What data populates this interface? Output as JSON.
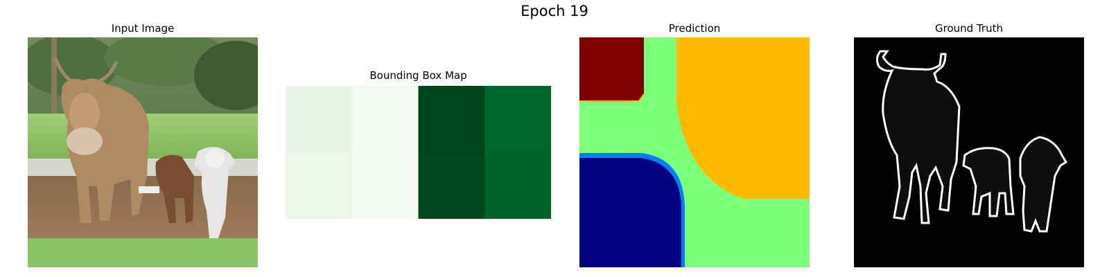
{
  "figure": {
    "suptitle": "Epoch 19"
  },
  "panels": {
    "input": {
      "title": "Input Image"
    },
    "bbox": {
      "title": "Bounding Box Map",
      "grid_rows": 2,
      "grid_cols": 4,
      "cell_colors": [
        [
          "#e8f5e6",
          "#f3faf1",
          "#00441b",
          "#00672a"
        ],
        [
          "#ecf7e9",
          "#f5fbf3",
          "#00471d",
          "#006428"
        ]
      ]
    },
    "prediction": {
      "title": "Prediction",
      "colors": {
        "background": "#7dff7a",
        "region_top_left": "#800000",
        "region_top_right": "#ffb900",
        "region_bottom_left": "#000080",
        "edge": "#0080ff"
      }
    },
    "ground_truth": {
      "title": "Ground Truth",
      "colors": {
        "background": "#000000",
        "fill": "#0e0e0e",
        "outline": "#ffffff"
      }
    }
  }
}
